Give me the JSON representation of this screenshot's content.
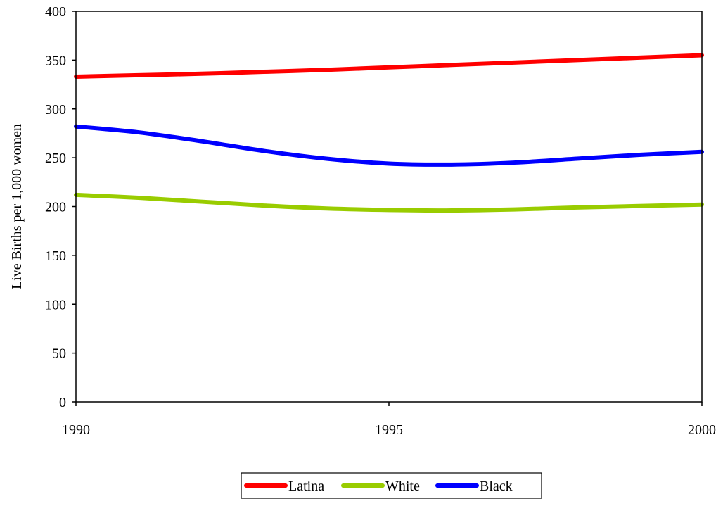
{
  "chart_data": {
    "type": "line",
    "title": "",
    "xlabel": "",
    "ylabel": "Live Births per 1,000 women",
    "x_ticks": [
      "1990",
      "1995",
      "2000"
    ],
    "x_range": [
      1990,
      2000
    ],
    "ylim": [
      0,
      400
    ],
    "y_ticks": [
      "0",
      "50",
      "100",
      "150",
      "200",
      "250",
      "300",
      "350",
      "400"
    ],
    "grid": false,
    "legend_position": "bottom",
    "series": [
      {
        "name": "Latina",
        "color": "#FF0000",
        "points": [
          [
            1990,
            333
          ],
          [
            1991,
            334.5
          ],
          [
            1992,
            336
          ],
          [
            1993,
            338
          ],
          [
            1994,
            340
          ],
          [
            1995,
            342.5
          ],
          [
            1996,
            345
          ],
          [
            1997,
            347.5
          ],
          [
            1998,
            350
          ],
          [
            1999,
            352.5
          ],
          [
            2000,
            355
          ]
        ]
      },
      {
        "name": "White",
        "color": "#99CC00",
        "points": [
          [
            1990,
            212
          ],
          [
            1991,
            209
          ],
          [
            1992,
            205
          ],
          [
            1993,
            201
          ],
          [
            1994,
            198
          ],
          [
            1995,
            196.5
          ],
          [
            1996,
            196
          ],
          [
            1997,
            197
          ],
          [
            1998,
            199
          ],
          [
            1999,
            200.5
          ],
          [
            2000,
            202
          ]
        ]
      },
      {
        "name": "Black",
        "color": "#0000FF",
        "points": [
          [
            1990,
            282
          ],
          [
            1991,
            276
          ],
          [
            1992,
            267
          ],
          [
            1993,
            257
          ],
          [
            1994,
            249
          ],
          [
            1995,
            244
          ],
          [
            1996,
            243
          ],
          [
            1997,
            245
          ],
          [
            1998,
            249
          ],
          [
            1999,
            253
          ],
          [
            2000,
            256
          ]
        ]
      }
    ]
  }
}
